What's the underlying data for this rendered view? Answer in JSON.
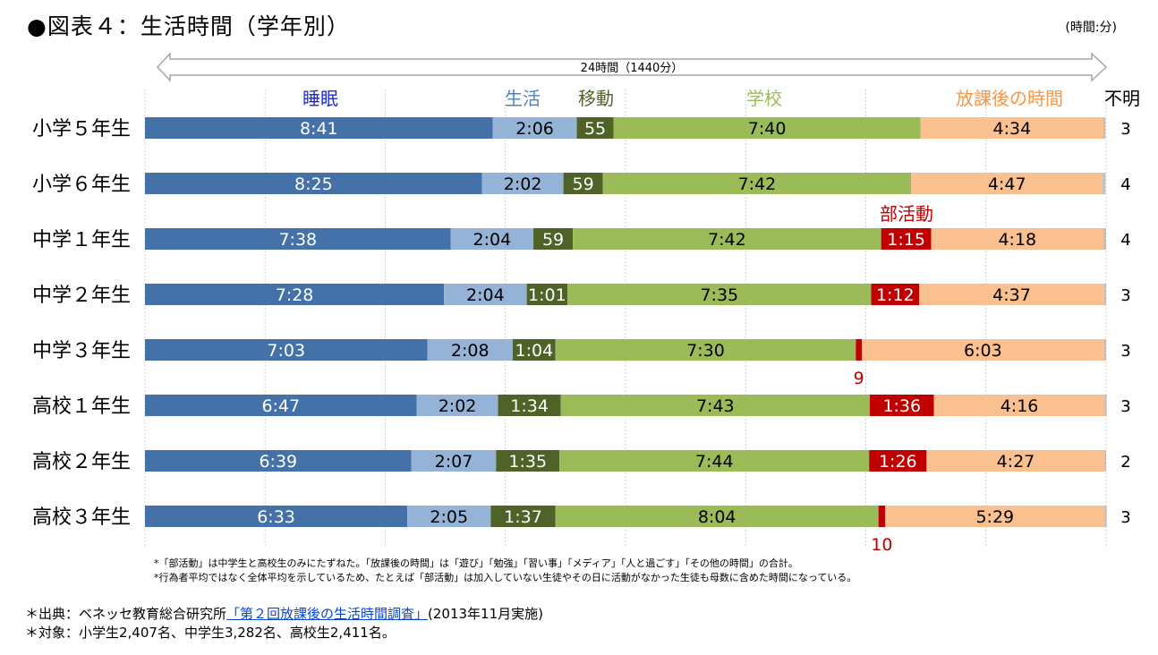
{
  "header": {
    "title": "●図表４：生活時間（学年別）",
    "unit_note": "(時間:分)"
  },
  "chart_data": {
    "type": "bar",
    "orientation": "horizontal",
    "stacked": true,
    "title": "●図表４：生活時間（学年別）",
    "span_label": "24時間（1440分）",
    "xlim": [
      0,
      1440
    ],
    "x_unit": "minutes",
    "grid": true,
    "categories": [
      "小学５年生",
      "小学６年生",
      "中学１年生",
      "中学２年生",
      "中学３年生",
      "高校１年生",
      "高校２年生",
      "高校３年生"
    ],
    "series": [
      {
        "name": "睡眠",
        "color": "#4472a8",
        "label_color": "#1f2bd6",
        "text_color": "#ffffff",
        "values": [
          521,
          505,
          458,
          448,
          423,
          407,
          399,
          393
        ],
        "labels": [
          "8:41",
          "8:25",
          "7:38",
          "7:28",
          "7:03",
          "6:47",
          "6:39",
          "6:33"
        ]
      },
      {
        "name": "生活",
        "color": "#95b3d7",
        "label_color": "#4f81bd",
        "text_color": "#000000",
        "values": [
          126,
          122,
          124,
          124,
          128,
          122,
          127,
          125
        ],
        "labels": [
          "2:06",
          "2:02",
          "2:04",
          "2:04",
          "2:08",
          "2:02",
          "2:07",
          "2:05"
        ]
      },
      {
        "name": "移動",
        "color": "#4f6228",
        "label_color": "#4f6228",
        "text_color": "#ffffff",
        "values": [
          55,
          59,
          59,
          61,
          64,
          94,
          95,
          97
        ],
        "labels": [
          "55",
          "59",
          "59",
          "1:01",
          "1:04",
          "1:34",
          "1:35",
          "1:37"
        ]
      },
      {
        "name": "学校",
        "color": "#9bbb59",
        "label_color": "#9bbb59",
        "text_color": "#000000",
        "values": [
          460,
          462,
          462,
          455,
          450,
          463,
          464,
          484
        ],
        "labels": [
          "7:40",
          "7:42",
          "7:42",
          "7:35",
          "7:30",
          "7:43",
          "7:44",
          "8:04"
        ]
      },
      {
        "name": "部活動",
        "color": "#c00000",
        "label_color": "#c00000",
        "text_color": "#ffffff",
        "values": [
          0,
          0,
          75,
          72,
          9,
          96,
          86,
          10
        ],
        "labels": [
          "",
          "",
          "1:15",
          "1:12",
          "9",
          "1:36",
          "1:26",
          "10"
        ]
      },
      {
        "name": "放課後の時間",
        "color": "#fac090",
        "label_color": "#f79646",
        "text_color": "#000000",
        "values": [
          274,
          287,
          258,
          277,
          363,
          256,
          267,
          329
        ],
        "labels": [
          "4:34",
          "4:47",
          "4:18",
          "4:37",
          "6:03",
          "4:16",
          "4:27",
          "5:29"
        ]
      },
      {
        "name": "不明",
        "color": "#bfbfbf",
        "label_color": "#000000",
        "text_color": "#000000",
        "values": [
          3,
          4,
          4,
          3,
          3,
          3,
          2,
          3
        ],
        "labels": [
          "3",
          "4",
          "4",
          "3",
          "3",
          "3",
          "2",
          "3"
        ]
      }
    ]
  },
  "notes": [
    "*「部活動」は中学生と高校生のみにたずねた。「放課後の時間」は「遊び」「勉強」「習い事」「メディア」「人と過ごす」「その他の時間」の合計。",
    "*行為者平均ではなく全体平均を示しているため、たとえば「部活動」は加入していない生徒やその日に活動がなかった生徒も母数に含めた時間になっている。"
  ],
  "source": {
    "prefix": "＊出典：ベネッセ教育総合研究所",
    "link_text": "「第２回放課後の生活時間調査」",
    "suffix": "(2013年11月実施)",
    "target": "＊対象：小学生2,407名、中学生3,282名、高校生2,411名。"
  }
}
